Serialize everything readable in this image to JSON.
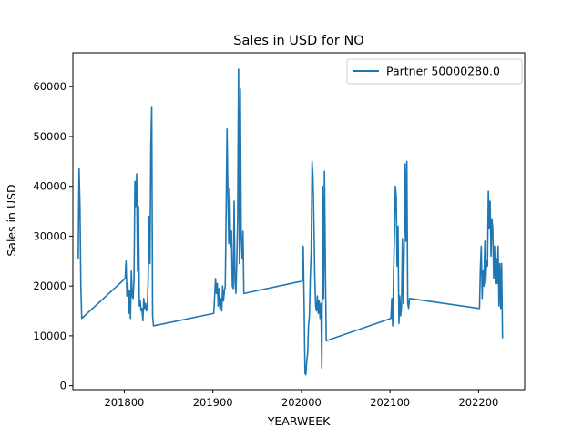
{
  "chart_data": {
    "type": "line",
    "title": "Sales in USD for NO",
    "xlabel": "YEARWEEK",
    "ylabel": "Sales in USD",
    "xlim": [
      201742,
      202252
    ],
    "ylim": [
      -800,
      66800
    ],
    "x_ticks": [
      201800,
      201900,
      202000,
      202100,
      202200
    ],
    "y_ticks": [
      0,
      10000,
      20000,
      30000,
      40000,
      50000,
      60000
    ],
    "legend": {
      "position": "top-right"
    },
    "grid": false,
    "colors": {
      "series": "#1f77b4"
    },
    "series": [
      {
        "name": "Partner 50000280.0",
        "points": [
          [
            201748,
            25500
          ],
          [
            201749,
            43500
          ],
          [
            201750,
            36000
          ],
          [
            201751,
            20000
          ],
          [
            201752,
            13500
          ],
          [
            201801,
            21500
          ],
          [
            201802,
            25000
          ],
          [
            201803,
            18000
          ],
          [
            201804,
            20500
          ],
          [
            201805,
            14500
          ],
          [
            201806,
            19000
          ],
          [
            201807,
            13500
          ],
          [
            201808,
            23000
          ],
          [
            201809,
            18000
          ],
          [
            201810,
            17500
          ],
          [
            201811,
            21500
          ],
          [
            201812,
            41000
          ],
          [
            201813,
            36000
          ],
          [
            201814,
            42500
          ],
          [
            201815,
            23000
          ],
          [
            201816,
            36000
          ],
          [
            201817,
            16000
          ],
          [
            201818,
            17000
          ],
          [
            201819,
            15000
          ],
          [
            201820,
            15500
          ],
          [
            201821,
            13000
          ],
          [
            201822,
            17500
          ],
          [
            201823,
            15500
          ],
          [
            201824,
            16500
          ],
          [
            201825,
            15000
          ],
          [
            201826,
            15500
          ],
          [
            201827,
            21500
          ],
          [
            201828,
            34000
          ],
          [
            201829,
            24500
          ],
          [
            201830,
            48000
          ],
          [
            201831,
            56000
          ],
          [
            201832,
            14000
          ],
          [
            201833,
            12000
          ],
          [
            201901,
            14500
          ],
          [
            201902,
            18000
          ],
          [
            201903,
            21500
          ],
          [
            201904,
            18500
          ],
          [
            201905,
            20500
          ],
          [
            201906,
            16000
          ],
          [
            201907,
            19500
          ],
          [
            201908,
            15500
          ],
          [
            201909,
            17500
          ],
          [
            201910,
            15000
          ],
          [
            201911,
            20000
          ],
          [
            201912,
            17000
          ],
          [
            201913,
            19000
          ],
          [
            201914,
            20000
          ],
          [
            201915,
            35000
          ],
          [
            201916,
            51500
          ],
          [
            201917,
            38000
          ],
          [
            201918,
            28500
          ],
          [
            201919,
            39500
          ],
          [
            201920,
            28000
          ],
          [
            201921,
            31000
          ],
          [
            201922,
            20000
          ],
          [
            201923,
            19500
          ],
          [
            201924,
            37000
          ],
          [
            201925,
            21000
          ],
          [
            201926,
            18500
          ],
          [
            201927,
            25000
          ],
          [
            201928,
            33500
          ],
          [
            201929,
            63500
          ],
          [
            201930,
            24500
          ],
          [
            201931,
            59500
          ],
          [
            201932,
            30000
          ],
          [
            201933,
            25500
          ],
          [
            201934,
            31000
          ],
          [
            201935,
            18500
          ],
          [
            202001,
            21000
          ],
          [
            202002,
            28000
          ],
          [
            202003,
            16500
          ],
          [
            202004,
            2500
          ],
          [
            202005,
            2200
          ],
          [
            202006,
            5000
          ],
          [
            202007,
            6500
          ],
          [
            202008,
            12000
          ],
          [
            202009,
            14000
          ],
          [
            202010,
            22000
          ],
          [
            202011,
            27000
          ],
          [
            202012,
            45000
          ],
          [
            202013,
            42000
          ],
          [
            202014,
            33500
          ],
          [
            202015,
            22500
          ],
          [
            202016,
            16000
          ],
          [
            202017,
            15000
          ],
          [
            202018,
            18000
          ],
          [
            202019,
            14500
          ],
          [
            202020,
            17000
          ],
          [
            202021,
            13500
          ],
          [
            202022,
            16500
          ],
          [
            202023,
            3500
          ],
          [
            202024,
            40000
          ],
          [
            202025,
            17500
          ],
          [
            202026,
            43000
          ],
          [
            202027,
            24000
          ],
          [
            202028,
            9000
          ],
          [
            202101,
            13500
          ],
          [
            202102,
            17500
          ],
          [
            202103,
            12000
          ],
          [
            202104,
            22500
          ],
          [
            202105,
            30000
          ],
          [
            202106,
            40000
          ],
          [
            202107,
            38000
          ],
          [
            202108,
            24000
          ],
          [
            202109,
            32000
          ],
          [
            202110,
            12500
          ],
          [
            202111,
            18000
          ],
          [
            202112,
            14000
          ],
          [
            202113,
            16000
          ],
          [
            202114,
            29500
          ],
          [
            202115,
            16500
          ],
          [
            202116,
            28000
          ],
          [
            202117,
            44500
          ],
          [
            202118,
            29000
          ],
          [
            202119,
            45000
          ],
          [
            202120,
            16500
          ],
          [
            202121,
            15500
          ],
          [
            202122,
            17500
          ],
          [
            202201,
            15500
          ],
          [
            202202,
            23500
          ],
          [
            202203,
            28000
          ],
          [
            202204,
            17500
          ],
          [
            202205,
            23000
          ],
          [
            202206,
            20000
          ],
          [
            202207,
            29000
          ],
          [
            202208,
            20500
          ],
          [
            202209,
            25000
          ],
          [
            202210,
            24000
          ],
          [
            202211,
            39000
          ],
          [
            202212,
            31500
          ],
          [
            202213,
            37000
          ],
          [
            202214,
            26000
          ],
          [
            202215,
            33500
          ],
          [
            202216,
            31500
          ],
          [
            202217,
            21500
          ],
          [
            202218,
            28000
          ],
          [
            202219,
            20500
          ],
          [
            202220,
            25500
          ],
          [
            202221,
            20500
          ],
          [
            202222,
            28000
          ],
          [
            202223,
            16000
          ],
          [
            202224,
            24500
          ],
          [
            202225,
            15500
          ],
          [
            202226,
            24500
          ],
          [
            202227,
            9500
          ]
        ]
      }
    ]
  }
}
